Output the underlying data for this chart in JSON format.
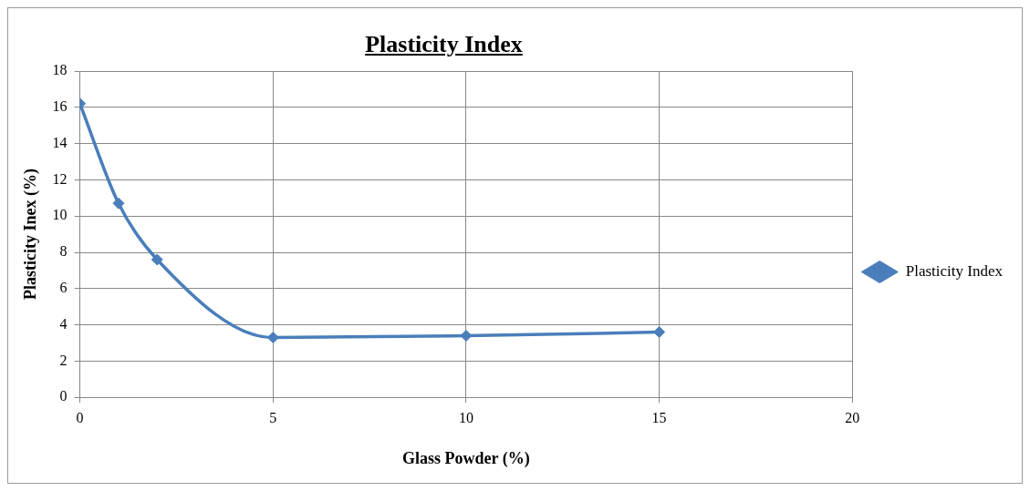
{
  "chart_data": {
    "type": "line",
    "title": "Plasticity Index",
    "xlabel": "Glass Powder (%)",
    "ylabel": "Plasticity Inex (%)",
    "x": [
      0,
      1,
      2,
      5,
      10,
      15
    ],
    "series": [
      {
        "name": "Plasticity Index",
        "color": "#4a7ebb",
        "values": [
          16.2,
          10.7,
          7.6,
          3.3,
          3.4,
          3.6
        ]
      }
    ],
    "xlim": [
      0,
      20
    ],
    "xticks": [
      0,
      5,
      10,
      15,
      20
    ],
    "ylim": [
      0,
      18
    ],
    "yticks": [
      0,
      2,
      4,
      6,
      8,
      10,
      12,
      14,
      16,
      18
    ],
    "grid": true,
    "legend": "right",
    "marker": "diamond",
    "line_style": "solid"
  }
}
